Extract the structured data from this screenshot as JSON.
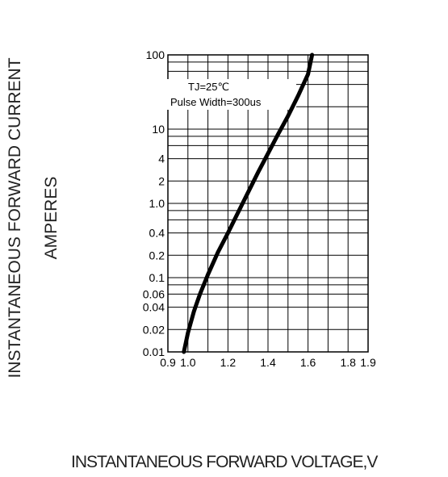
{
  "chart_data": {
    "type": "line",
    "title": "",
    "xlabel": "INSTANTANEOUS FORWARD VOLTAGE,V",
    "ylabel_lines": [
      "INSTANTANEOUS FORWARD CURRENT",
      "AMPERES"
    ],
    "xlim": [
      0.9,
      1.9
    ],
    "ylim": [
      0.01,
      100
    ],
    "y_scale": "log",
    "grid": true,
    "x_ticks": [
      {
        "value": 0.9,
        "label": "0.9"
      },
      {
        "value": 1.0,
        "label": "1.0"
      },
      {
        "value": 1.2,
        "label": "1.2"
      },
      {
        "value": 1.4,
        "label": "1.4"
      },
      {
        "value": 1.6,
        "label": "1.6"
      },
      {
        "value": 1.8,
        "label": "1.8"
      },
      {
        "value": 1.9,
        "label": "1.9"
      }
    ],
    "x_gridlines": [
      0.9,
      1.0,
      1.1,
      1.2,
      1.3,
      1.4,
      1.5,
      1.6,
      1.7,
      1.8,
      1.9
    ],
    "y_ticks": [
      {
        "value": 0.01,
        "label": "0.01"
      },
      {
        "value": 0.02,
        "label": "0.02"
      },
      {
        "value": 0.04,
        "label": "0.04"
      },
      {
        "value": 0.06,
        "label": "0.06"
      },
      {
        "value": 0.1,
        "label": "0.1"
      },
      {
        "value": 0.2,
        "label": "0.2"
      },
      {
        "value": 0.4,
        "label": "0.4"
      },
      {
        "value": 1.0,
        "label": "1.0"
      },
      {
        "value": 2,
        "label": "2"
      },
      {
        "value": 4,
        "label": "4"
      },
      {
        "value": 10,
        "label": "10"
      },
      {
        "value": 100,
        "label": "100"
      }
    ],
    "y_gridlines": [
      0.01,
      0.02,
      0.04,
      0.06,
      0.08,
      0.1,
      0.2,
      0.4,
      0.6,
      0.8,
      1.0,
      2,
      4,
      6,
      8,
      10,
      20,
      40,
      60,
      80,
      100
    ],
    "annotations": [
      "TJ=25℃",
      "Pulse Width=300us"
    ],
    "series": [
      {
        "x": [
          0.98,
          1.0,
          1.03,
          1.06,
          1.1,
          1.15,
          1.2,
          1.25,
          1.3,
          1.35,
          1.4,
          1.45,
          1.5,
          1.55,
          1.6,
          1.62
        ],
        "y": [
          0.01,
          0.018,
          0.035,
          0.06,
          0.11,
          0.22,
          0.4,
          0.75,
          1.4,
          2.6,
          4.7,
          8.5,
          15,
          28,
          55,
          100
        ]
      }
    ],
    "line_color": "#000000"
  }
}
